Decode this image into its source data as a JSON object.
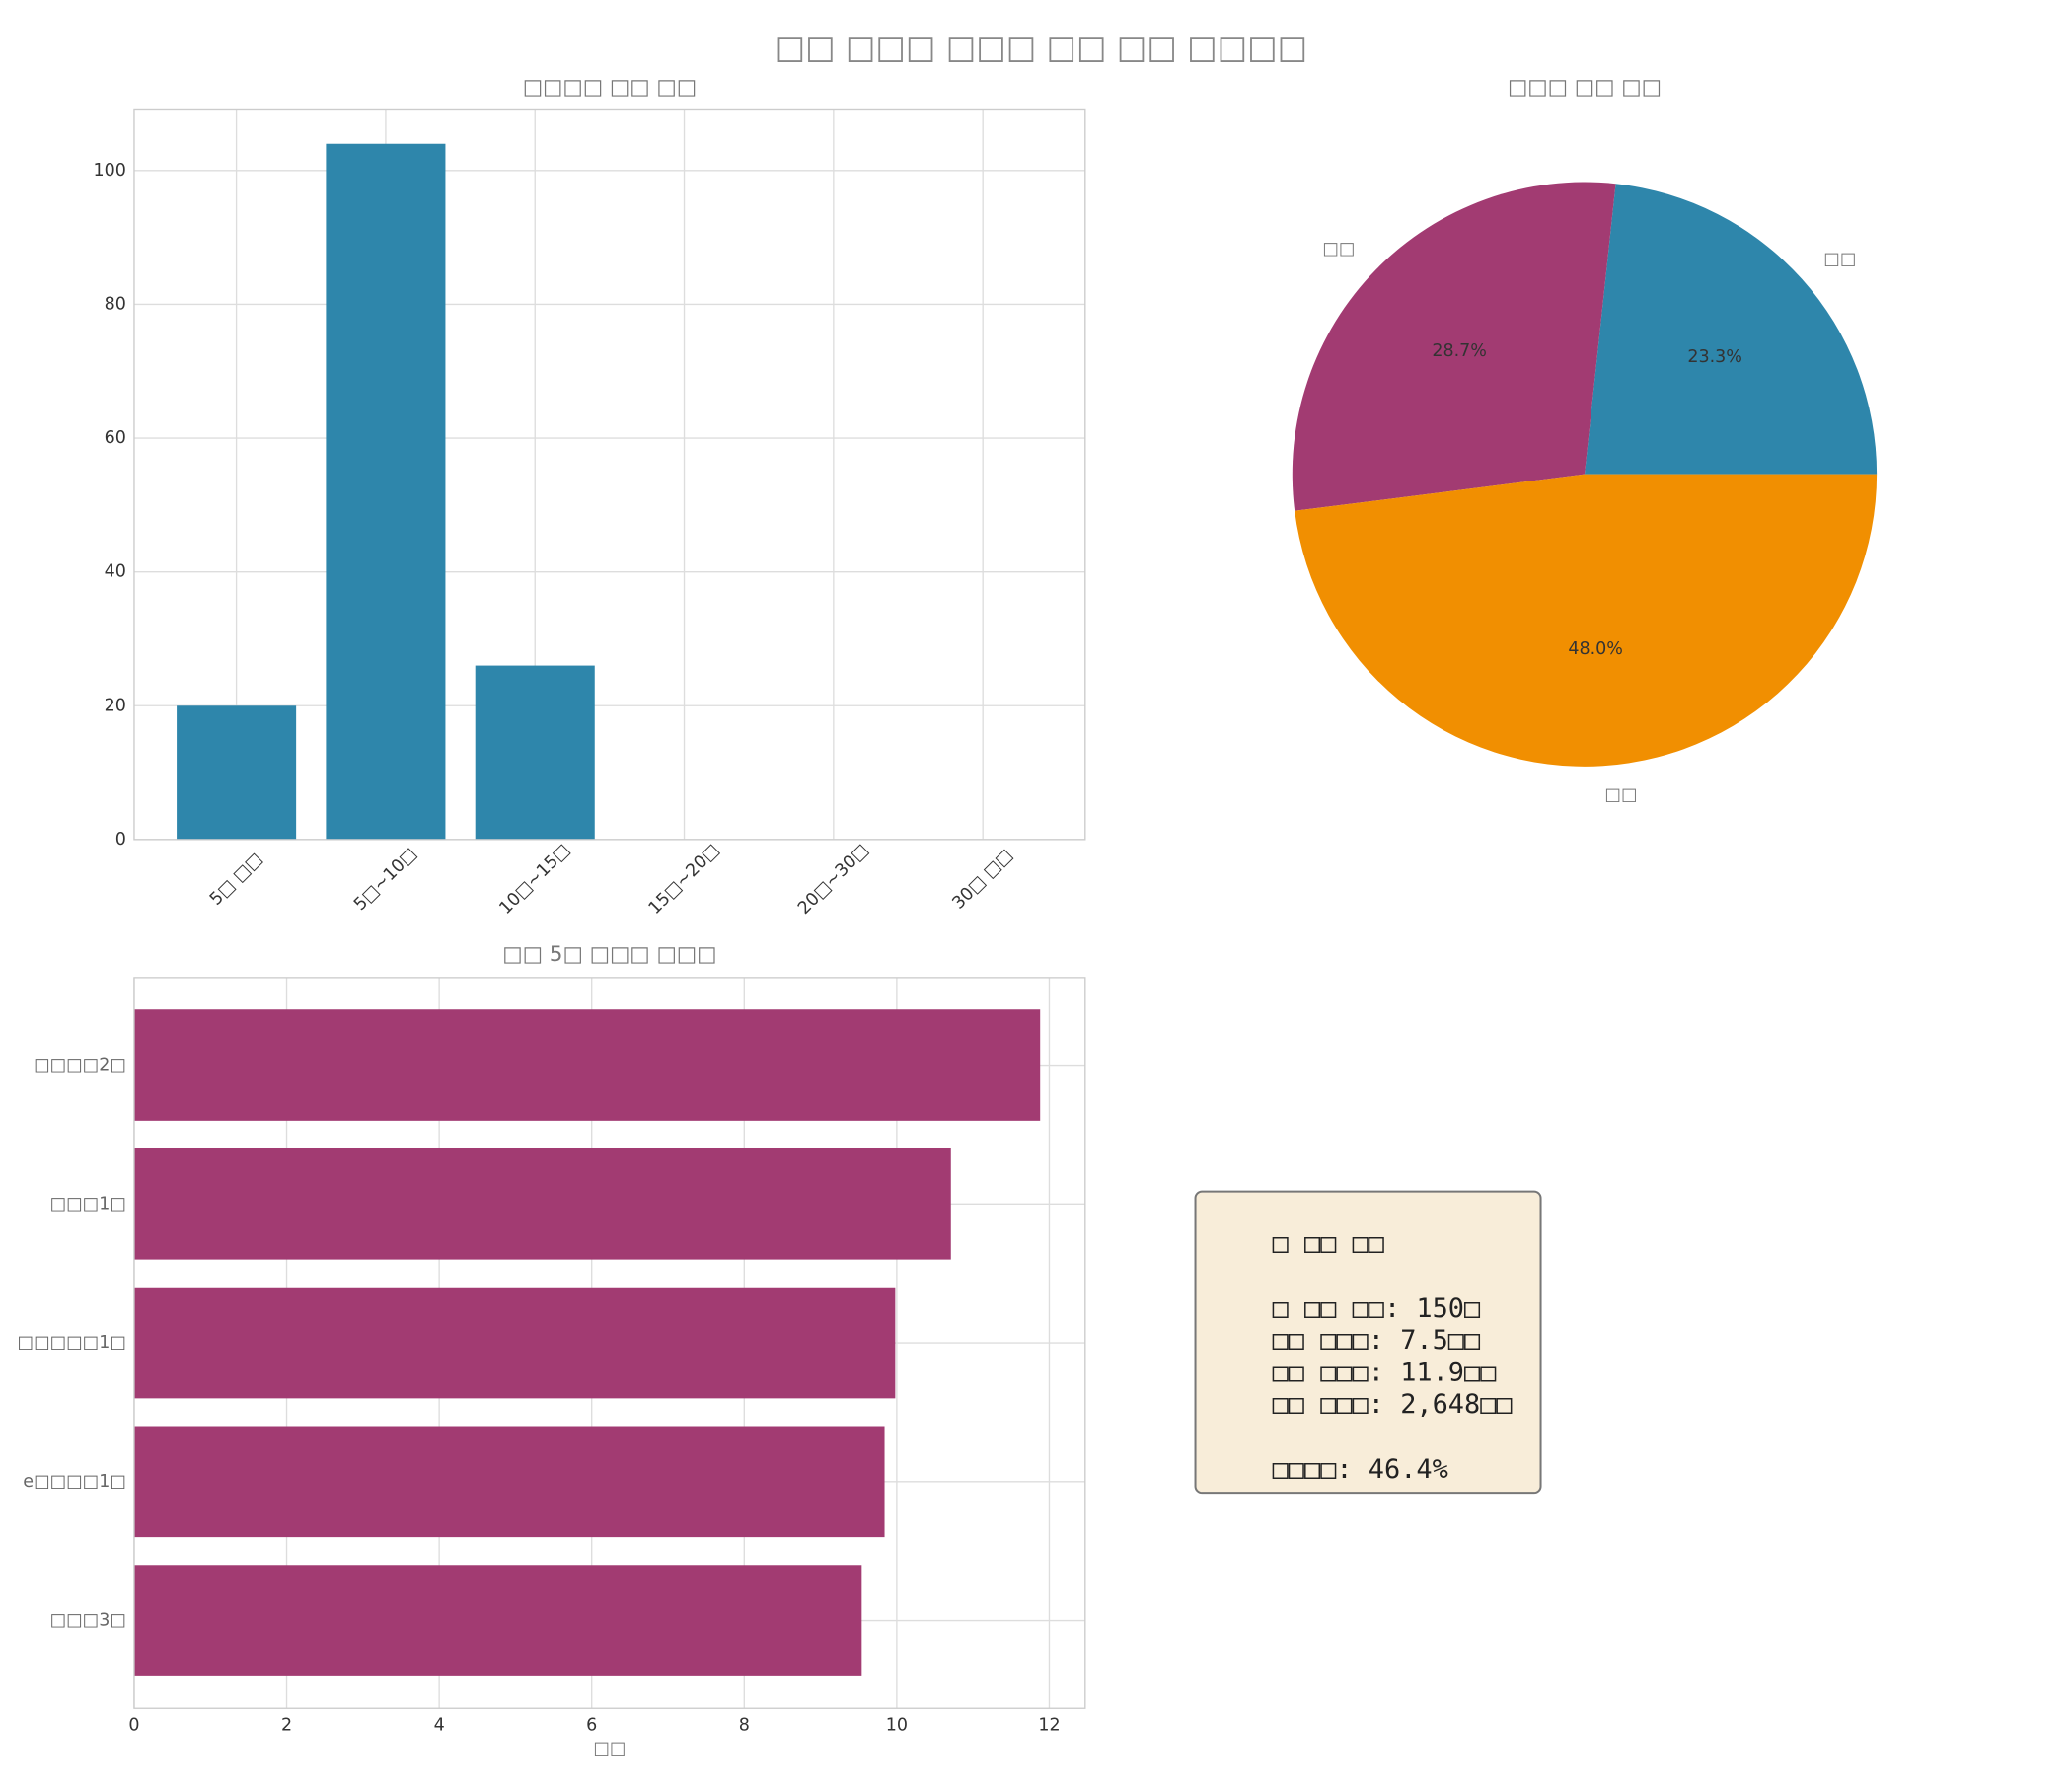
{
  "title": "□□ □□□ □□□ □□ □□ □□□□",
  "chart_data": [
    {
      "type": "bar",
      "title": "□□□□ □□ □□",
      "categories": [
        "5□ □□",
        "5□~10□",
        "10□~15□",
        "15□~20□",
        "20□~30□",
        "30□ □□"
      ],
      "values": [
        20,
        104,
        26,
        0,
        0,
        0
      ],
      "color": "#2E86AB",
      "ylim": [
        0,
        109.2
      ],
      "yticks": [
        0,
        20,
        40,
        60,
        80,
        100
      ],
      "grid": true
    },
    {
      "type": "pie",
      "title": "□□□ □□ □□",
      "labels": [
        "□□",
        "□□",
        "□□"
      ],
      "values": [
        23.3,
        28.7,
        48.0
      ],
      "value_labels": [
        "23.3%",
        "28.7%",
        "48.0%"
      ],
      "colors": [
        "#2E86AB",
        "#A23B72",
        "#F18F01"
      ]
    },
    {
      "type": "barh",
      "title": "□□ 5□ □□□ □□□",
      "xlabel": "□□",
      "categories": [
        "□□□□2□",
        "□□□1□",
        "□□□□□1□",
        "e□□□□1□",
        "□□□3□"
      ],
      "values": [
        11.88,
        10.71,
        9.98,
        9.84,
        9.54
      ],
      "color": "#A23B72",
      "xlim": [
        0,
        12.47
      ],
      "xticks": [
        0,
        2,
        4,
        6,
        8,
        10,
        12
      ],
      "grid": true
    }
  ],
  "info_box": {
    "heading": "□ □□ □□",
    "stats": [
      "□ □□ □□: 150□",
      "□□ □□□: 7.5□□",
      "□□ □□□: 11.9□□",
      "□□ □□□: 2,648□□"
    ],
    "footer": "□□□□: 46.4%"
  }
}
